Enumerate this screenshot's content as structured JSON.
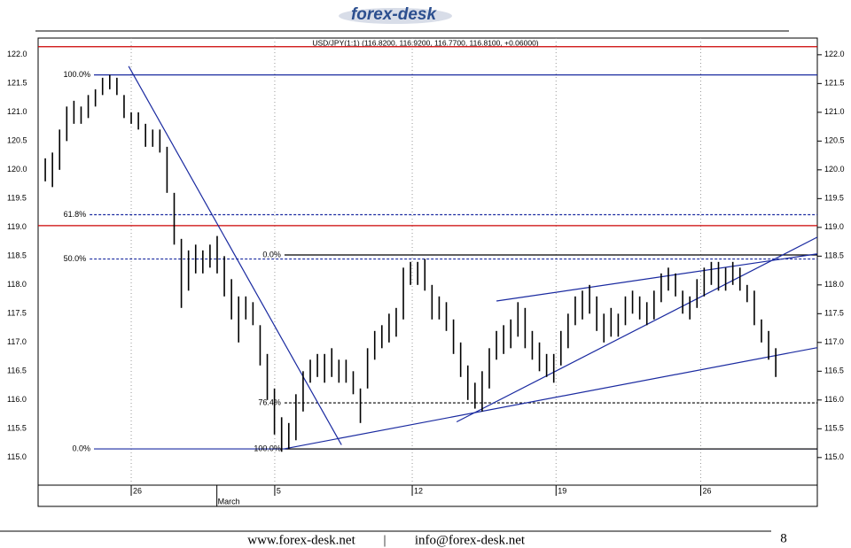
{
  "logo": "forex-desk",
  "chart_data": {
    "type": "ohlc",
    "title": "USD/JPY(1:1) (116.8200, 116.9200, 116.7700, 116.8100, +0.06000)",
    "color": "#000000",
    "x": [
      0.25,
      0.5,
      0.75,
      1,
      1.25,
      1.5,
      1.75,
      2,
      2.25,
      2.5,
      2.75,
      3,
      3.25,
      3.5,
      3.75,
      4,
      4.25,
      4.5,
      4.75,
      5,
      5.25,
      5.5,
      5.75,
      6,
      6.25,
      6.5,
      6.75,
      7,
      7.25,
      7.5,
      7.75,
      8,
      8.25,
      8.5,
      8.75,
      9,
      9.25,
      9.5,
      9.75,
      10,
      10.25,
      10.5,
      10.75,
      11,
      11.25,
      11.5,
      11.75,
      12,
      12.25,
      12.5,
      12.75,
      13,
      13.25,
      13.5,
      13.75,
      14,
      14.25,
      14.5,
      14.75,
      15,
      15.25,
      15.5,
      15.75,
      16,
      16.25,
      16.5,
      16.75,
      17,
      17.25,
      17.5,
      17.75,
      18,
      18.25,
      18.5,
      18.75,
      19,
      19.25,
      19.5,
      19.75,
      20,
      20.25,
      20.5,
      20.75,
      21,
      21.25,
      21.5,
      21.75,
      22,
      22.25,
      22.5,
      22.75,
      23,
      23.25,
      23.5,
      23.75,
      24,
      24.25,
      24.5,
      24.75,
      25,
      25.25,
      25.5,
      25.75
    ],
    "high": [
      120.2,
      120.3,
      120.7,
      121.1,
      121.2,
      121.1,
      121.3,
      121.4,
      121.6,
      121.65,
      121.6,
      121.3,
      121.0,
      121.0,
      120.8,
      120.7,
      120.7,
      120.4,
      119.6,
      118.8,
      118.6,
      118.7,
      118.6,
      118.7,
      118.85,
      118.5,
      118.1,
      117.8,
      117.8,
      117.7,
      117.3,
      116.8,
      116.2,
      115.7,
      115.6,
      116.1,
      116.5,
      116.7,
      116.8,
      116.8,
      116.9,
      116.7,
      116.7,
      116.5,
      116.2,
      116.9,
      117.2,
      117.3,
      117.5,
      117.6,
      118.3,
      118.4,
      118.4,
      118.45,
      118.0,
      117.8,
      117.7,
      117.4,
      117.0,
      116.6,
      116.3,
      116.5,
      116.9,
      117.2,
      117.3,
      117.4,
      117.7,
      117.6,
      117.2,
      117.0,
      116.8,
      116.8,
      117.2,
      117.5,
      117.8,
      117.9,
      118.0,
      117.8,
      117.5,
      117.6,
      117.5,
      117.8,
      117.9,
      117.8,
      117.7,
      117.9,
      118.2,
      118.3,
      118.2,
      117.9,
      117.8,
      118.1,
      118.3,
      118.4,
      118.4,
      118.3,
      118.4,
      118.3,
      118.0,
      117.9,
      117.4,
      117.2,
      116.9
    ],
    "low": [
      119.8,
      119.7,
      120.0,
      120.5,
      120.8,
      120.8,
      120.9,
      121.1,
      121.3,
      121.4,
      121.3,
      120.9,
      120.8,
      120.7,
      120.4,
      120.4,
      120.3,
      119.6,
      118.7,
      117.6,
      117.9,
      118.2,
      118.2,
      118.3,
      118.2,
      117.8,
      117.4,
      117.0,
      117.4,
      117.3,
      116.6,
      116.0,
      115.4,
      115.1,
      115.15,
      115.3,
      115.8,
      116.3,
      116.4,
      116.3,
      116.4,
      116.3,
      116.3,
      116.1,
      115.6,
      116.2,
      116.7,
      116.9,
      117.0,
      117.1,
      117.4,
      118.0,
      118.0,
      117.9,
      117.4,
      117.4,
      117.2,
      116.8,
      116.4,
      116.0,
      115.85,
      115.8,
      116.2,
      116.7,
      116.8,
      116.9,
      117.1,
      116.9,
      116.7,
      116.5,
      116.4,
      116.3,
      116.6,
      116.9,
      117.3,
      117.4,
      117.5,
      117.2,
      117.0,
      117.1,
      117.1,
      117.3,
      117.5,
      117.4,
      117.3,
      117.4,
      117.7,
      117.9,
      117.8,
      117.5,
      117.4,
      117.6,
      117.8,
      118.0,
      117.9,
      117.9,
      118.0,
      117.9,
      117.7,
      117.3,
      117.0,
      116.7,
      116.4
    ],
    "xlim": [
      0,
      27.2
    ],
    "ylim": [
      114.52,
      122.29
    ],
    "xticks": [
      {
        "value": 3.25,
        "label": "26"
      },
      {
        "value": 8.26,
        "label": "5"
      },
      {
        "value": 13.06,
        "label": "12"
      },
      {
        "value": 18.08,
        "label": "19"
      },
      {
        "value": 23.13,
        "label": "26"
      }
    ],
    "month_ticks": [
      {
        "value": 6.24,
        "label": "March"
      }
    ],
    "yticks": [
      {
        "value": 115,
        "label": "115.0"
      },
      {
        "value": 115.5,
        "label": "115.5"
      },
      {
        "value": 116,
        "label": "116.0"
      },
      {
        "value": 116.5,
        "label": "116.5"
      },
      {
        "value": 117,
        "label": "117.0"
      },
      {
        "value": 117.5,
        "label": "117.5"
      },
      {
        "value": 118,
        "label": "118.0"
      },
      {
        "value": 118.5,
        "label": "118.5"
      },
      {
        "value": 119,
        "label": "119.0"
      },
      {
        "value": 119.5,
        "label": "119.5"
      },
      {
        "value": 120,
        "label": "120.0"
      },
      {
        "value": 120.5,
        "label": "120.5"
      },
      {
        "value": 121,
        "label": "121.0"
      },
      {
        "value": 121.5,
        "label": "121.5"
      },
      {
        "value": 122,
        "label": "122.0"
      }
    ],
    "grid": true,
    "levels": [
      {
        "value": 122.14,
        "from": 0,
        "color": "#cc0000",
        "dash": false
      },
      {
        "value": 119.03,
        "from": 0,
        "color": "#cc0000",
        "dash": false
      },
      {
        "value": 121.65,
        "from": 1.95,
        "label": "100.0%",
        "color": "#1a2aa0",
        "dash": false
      },
      {
        "value": 119.22,
        "from": 1.8,
        "label": "61.8%",
        "color": "#1a2aa0",
        "dash": true
      },
      {
        "value": 118.45,
        "from": 1.8,
        "label": "50.0%",
        "color": "#1a2aa0",
        "dash": true
      },
      {
        "value": 115.15,
        "from": 1.95,
        "label": "0.0%",
        "color": "#1a2aa0",
        "dash": false
      },
      {
        "value": 118.52,
        "from": 8.6,
        "label": "0.0%",
        "color": "#000000",
        "dash": false
      },
      {
        "value": 115.95,
        "from": 8.6,
        "label": "76.4%",
        "color": "#000000",
        "dash": true
      },
      {
        "value": 115.15,
        "from": 8.6,
        "label": "100.0%",
        "color": "#000000",
        "dash": false
      }
    ],
    "trendlines": [
      {
        "x": [
          3.16,
          10.59
        ],
        "y": [
          121.8,
          115.22
        ],
        "color": "#1a2aa0"
      },
      {
        "x": [
          8.58,
          27.2
        ],
        "y": [
          115.15,
          116.91
        ],
        "color": "#1a2aa0"
      },
      {
        "x": [
          14.61,
          27.2
        ],
        "y": [
          115.62,
          118.83
        ],
        "color": "#1a2aa0"
      },
      {
        "x": [
          16.0,
          27.2
        ],
        "y": [
          117.72,
          118.54
        ],
        "color": "#1a2aa0"
      }
    ]
  },
  "footer": {
    "website": "www.forex-desk.net",
    "separator": "|",
    "email": "info@forex-desk.net",
    "page": "8"
  }
}
